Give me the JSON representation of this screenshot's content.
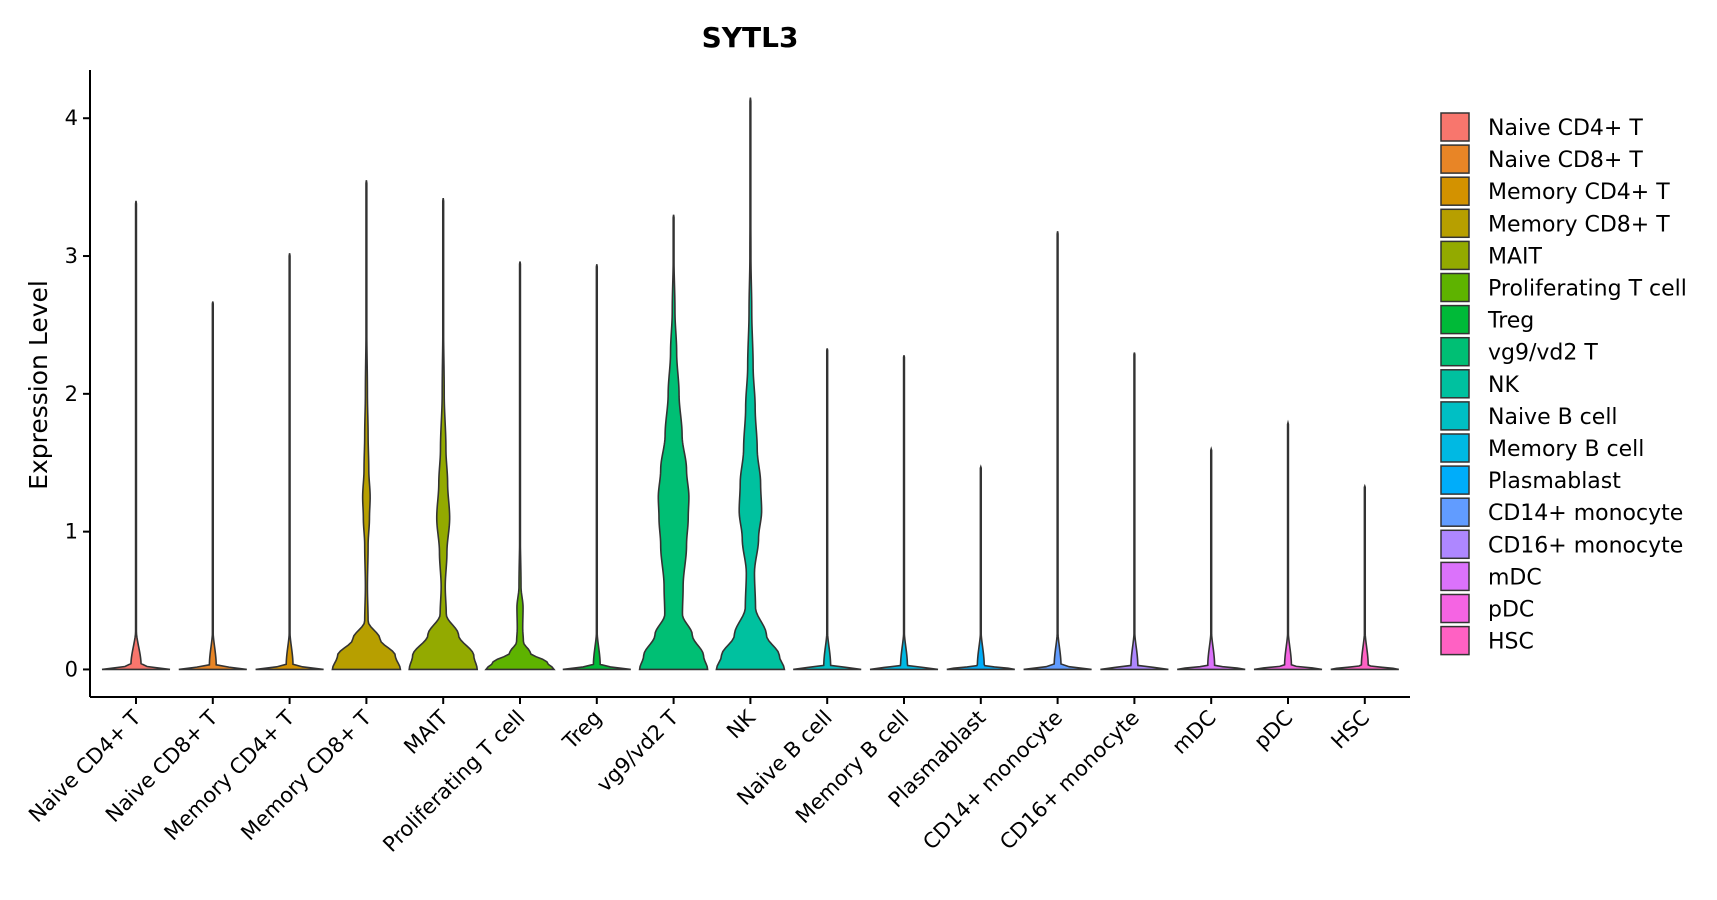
{
  "chart_data": {
    "type": "violin",
    "title": "SYTL3",
    "ylabel": "Expression Level",
    "xlabel": "",
    "ylim": [
      -0.2,
      4.35
    ],
    "yticks": [
      0,
      1,
      2,
      3,
      4
    ],
    "grid": false,
    "legend_position": "right",
    "categories": [
      "Naive CD4+ T",
      "Naive CD8+ T",
      "Memory CD4+ T",
      "Memory CD8+ T",
      "MAIT",
      "Proliferating T cell",
      "Treg",
      "vg9/vd2 T",
      "NK",
      "Naive B cell",
      "Memory B cell",
      "Plasmablast",
      "CD14+ monocyte",
      "CD16+ monocyte",
      "mDC",
      "pDC",
      "HSC"
    ],
    "colors": [
      "#F8766D",
      "#E88526",
      "#D39200",
      "#B79F00",
      "#93AA00",
      "#5EB300",
      "#00BA38",
      "#00BF74",
      "#00C19F",
      "#00BFC4",
      "#00B9E3",
      "#00ADFA",
      "#619CFF",
      "#AE87FF",
      "#DB72FB",
      "#F564E3",
      "#FF61C3"
    ],
    "max_values": [
      3.4,
      2.67,
      3.02,
      3.55,
      3.42,
      2.96,
      2.94,
      3.3,
      4.15,
      2.33,
      2.28,
      1.47,
      3.18,
      2.3,
      1.6,
      1.79,
      1.33
    ],
    "density_profiles": [
      [
        [
          0,
          1
        ],
        [
          0.03,
          0.15
        ],
        [
          0.3,
          0.005
        ]
      ],
      [
        [
          0,
          1
        ],
        [
          0.03,
          0.1
        ],
        [
          0.3,
          0.004
        ]
      ],
      [
        [
          0,
          1
        ],
        [
          0.03,
          0.1
        ],
        [
          0.3,
          0.004
        ]
      ],
      [
        [
          0,
          1
        ],
        [
          0.1,
          0.85
        ],
        [
          0.22,
          0.4
        ],
        [
          0.35,
          0.05
        ],
        [
          0.6,
          0.03
        ],
        [
          0.9,
          0.05
        ],
        [
          1.1,
          0.09
        ],
        [
          1.25,
          0.11
        ],
        [
          1.45,
          0.07
        ],
        [
          1.7,
          0.05
        ],
        [
          2.0,
          0.03
        ],
        [
          2.5,
          0.01
        ],
        [
          3.0,
          0.004
        ]
      ],
      [
        [
          0,
          1
        ],
        [
          0.1,
          0.9
        ],
        [
          0.25,
          0.45
        ],
        [
          0.4,
          0.09
        ],
        [
          0.6,
          0.06
        ],
        [
          0.85,
          0.11
        ],
        [
          1.1,
          0.19
        ],
        [
          1.35,
          0.13
        ],
        [
          1.6,
          0.08
        ],
        [
          2.0,
          0.03
        ],
        [
          2.5,
          0.01
        ],
        [
          3.0,
          0.004
        ]
      ],
      [
        [
          0,
          1
        ],
        [
          0.05,
          0.8
        ],
        [
          0.12,
          0.3
        ],
        [
          0.2,
          0.1
        ],
        [
          0.3,
          0.08
        ],
        [
          0.45,
          0.09
        ],
        [
          0.6,
          0.03
        ],
        [
          1.0,
          0.008
        ],
        [
          2.0,
          0.003
        ]
      ],
      [
        [
          0,
          1
        ],
        [
          0.03,
          0.1
        ],
        [
          0.3,
          0.004
        ]
      ],
      [
        [
          0,
          1
        ],
        [
          0.1,
          0.88
        ],
        [
          0.25,
          0.55
        ],
        [
          0.4,
          0.26
        ],
        [
          0.6,
          0.28
        ],
        [
          0.9,
          0.38
        ],
        [
          1.1,
          0.43
        ],
        [
          1.25,
          0.45
        ],
        [
          1.45,
          0.38
        ],
        [
          1.7,
          0.25
        ],
        [
          2.0,
          0.16
        ],
        [
          2.3,
          0.09
        ],
        [
          2.6,
          0.04
        ],
        [
          3.0,
          0.01
        ]
      ],
      [
        [
          0,
          1
        ],
        [
          0.1,
          0.85
        ],
        [
          0.25,
          0.47
        ],
        [
          0.45,
          0.15
        ],
        [
          0.7,
          0.12
        ],
        [
          0.95,
          0.24
        ],
        [
          1.15,
          0.33
        ],
        [
          1.35,
          0.3
        ],
        [
          1.6,
          0.2
        ],
        [
          1.9,
          0.14
        ],
        [
          2.2,
          0.08
        ],
        [
          2.6,
          0.04
        ],
        [
          3.0,
          0.015
        ],
        [
          3.6,
          0.004
        ]
      ],
      [
        [
          0,
          1
        ],
        [
          0.03,
          0.1
        ],
        [
          0.3,
          0.004
        ]
      ],
      [
        [
          0,
          1
        ],
        [
          0.03,
          0.1
        ],
        [
          0.3,
          0.004
        ]
      ],
      [
        [
          0,
          1
        ],
        [
          0.03,
          0.1
        ],
        [
          0.3,
          0.004
        ]
      ],
      [
        [
          0,
          1
        ],
        [
          0.03,
          0.1
        ],
        [
          0.3,
          0.004
        ]
      ],
      [
        [
          0,
          1
        ],
        [
          0.03,
          0.1
        ],
        [
          0.3,
          0.004
        ]
      ],
      [
        [
          0,
          1
        ],
        [
          0.03,
          0.1
        ],
        [
          0.3,
          0.004
        ]
      ],
      [
        [
          0,
          1
        ],
        [
          0.03,
          0.1
        ],
        [
          0.3,
          0.004
        ]
      ],
      [
        [
          0,
          1
        ],
        [
          0.03,
          0.1
        ],
        [
          0.3,
          0.004
        ]
      ]
    ]
  }
}
